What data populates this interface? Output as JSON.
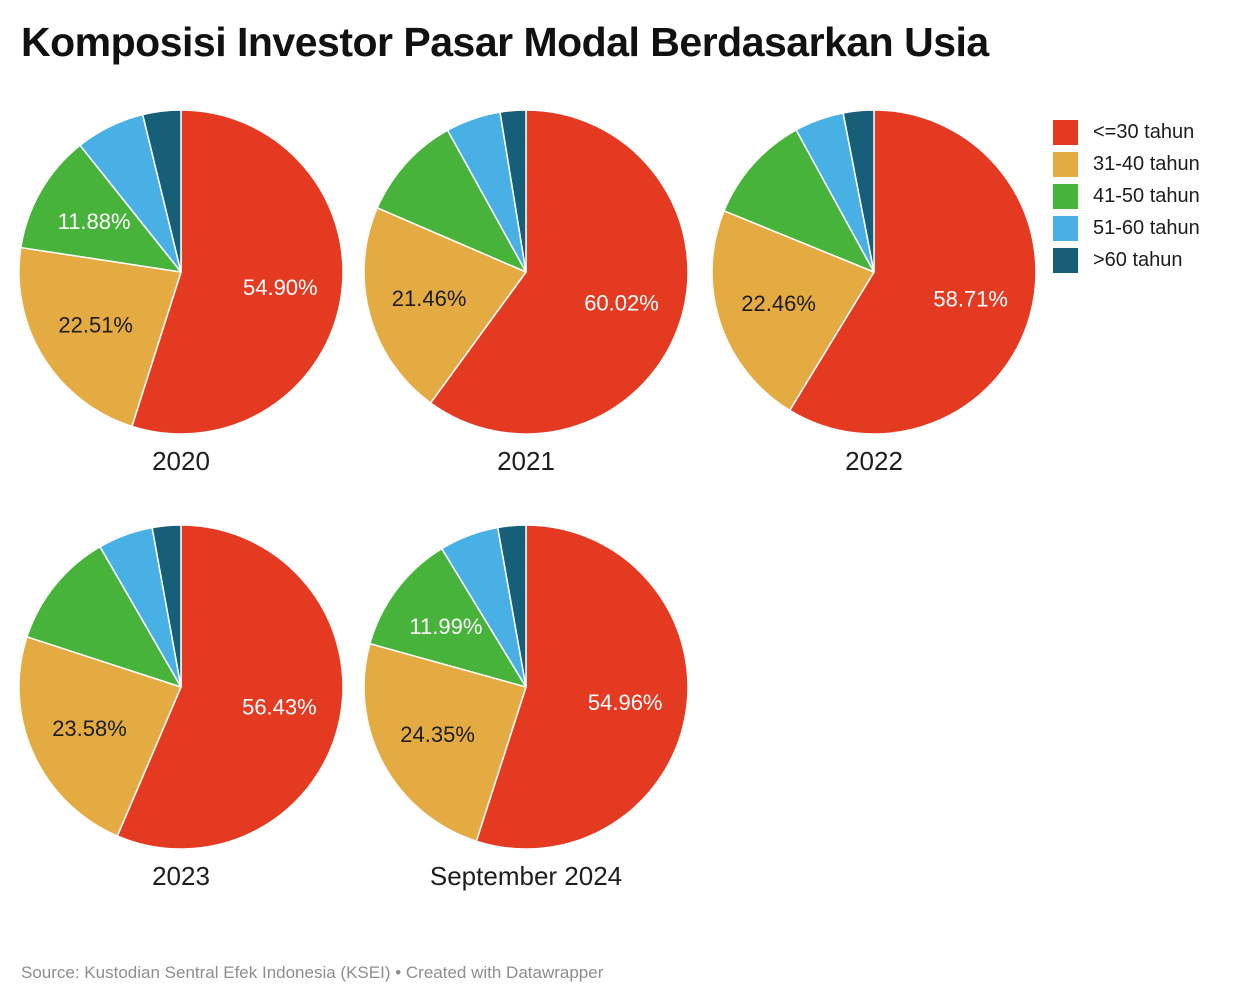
{
  "chart_data": {
    "type": "pie",
    "title": "Komposisi Investor Pasar Modal Berdasarkan Usia",
    "legend_position": "top-right",
    "start_angle": "12-o-clock",
    "direction": "clockwise",
    "categories": [
      "<=30 tahun",
      "31-40 tahun",
      "41-50 tahun",
      "51-60 tahun",
      ">60 tahun"
    ],
    "colors": [
      "#e53a22",
      "#e5ab43",
      "#48b33a",
      "#49b0e5",
      "#175f79"
    ],
    "data_label_colors": [
      "#ffffff",
      "#1d1d1d",
      "#ffffff",
      "#ffffff",
      "#ffffff"
    ],
    "pies": [
      {
        "label": "2020",
        "values": [
          54.9,
          22.51,
          11.88,
          6.91,
          3.8
        ],
        "data_labels": [
          "54.90%",
          "22.51%",
          "11.88%",
          null,
          null
        ]
      },
      {
        "label": "2021",
        "values": [
          60.02,
          21.46,
          10.48,
          5.48,
          2.56
        ],
        "data_labels": [
          "60.02%",
          "21.46%",
          null,
          null,
          null
        ]
      },
      {
        "label": "2022",
        "values": [
          58.71,
          22.46,
          10.85,
          4.93,
          3.05
        ],
        "data_labels": [
          "58.71%",
          "22.46%",
          null,
          null,
          null
        ]
      },
      {
        "label": "2023",
        "values": [
          56.43,
          23.58,
          11.66,
          5.48,
          2.85
        ],
        "data_labels": [
          "56.43%",
          "23.58%",
          null,
          null,
          null
        ]
      },
      {
        "label": "September 2024",
        "values": [
          54.96,
          24.35,
          11.99,
          5.91,
          2.79
        ],
        "data_labels": [
          "54.96%",
          "24.35%",
          "11.99%",
          null,
          null
        ]
      }
    ]
  },
  "footer": {
    "source_line": "Source: Kustodian Sentral Efek Indonesia (KSEI) • Created with Datawrapper"
  }
}
